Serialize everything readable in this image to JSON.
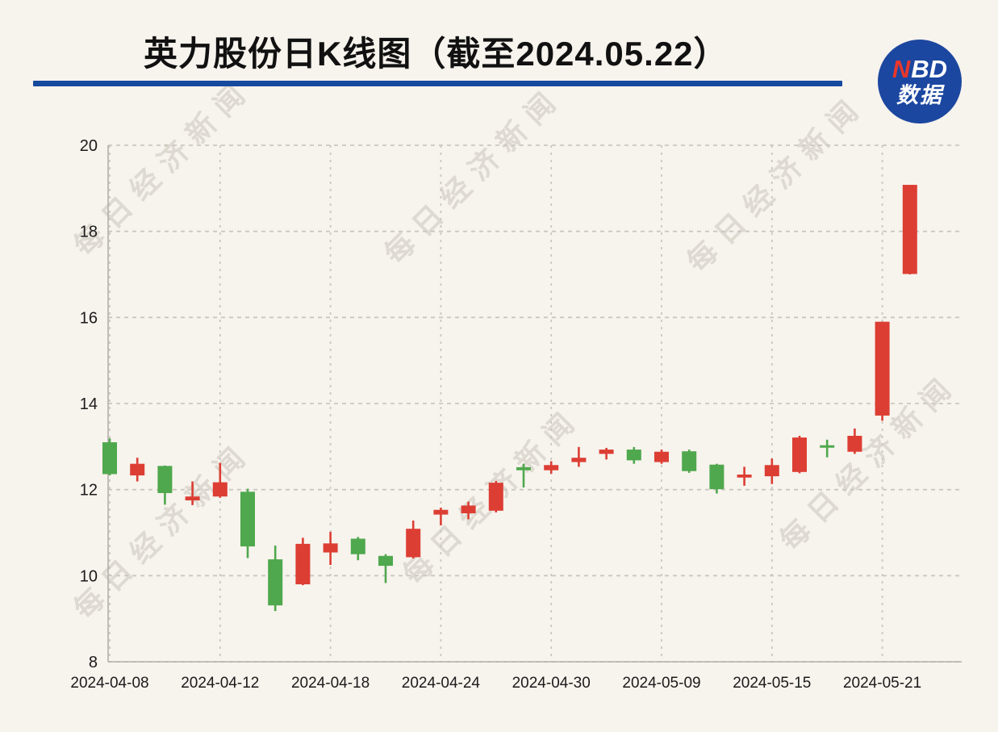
{
  "header": {
    "title": "英力股份日K线图（截至2024.05.22）",
    "logo": {
      "n": "N",
      "bd": "BD",
      "subtitle": "数据"
    }
  },
  "watermark": {
    "text": "每日经济新闻"
  },
  "colors": {
    "background": "#f7f3ed",
    "up": "#dc3e33",
    "down": "#4fa84d",
    "rule_blue": "#164a9e",
    "logo_blue": "#1c47a0",
    "logo_red": "#e8372c",
    "grid": "#cbc7c0",
    "axis": "#b3afa9",
    "label": "#1b1b1b"
  },
  "chart_data": {
    "type": "candlestick",
    "convention": "red = up (close > open), green = down (CN stock chart convention)",
    "ylim": [
      8,
      20
    ],
    "y_ticks": [
      8,
      10,
      12,
      14,
      16,
      18,
      20
    ],
    "x_tick_indices": [
      0,
      4,
      8,
      12,
      16,
      20,
      24,
      28
    ],
    "x_tick_labels": [
      "2024-04-08",
      "2024-04-12",
      "2024-04-18",
      "2024-04-24",
      "2024-04-30",
      "2024-05-09",
      "2024-05-15",
      "2024-05-21"
    ],
    "grid": true,
    "candles": [
      {
        "date": "2024-04-08",
        "o": 13.1,
        "h": 13.19,
        "l": 12.33,
        "c": 12.36
      },
      {
        "date": "2024-04-09",
        "o": 12.33,
        "h": 12.74,
        "l": 12.19,
        "c": 12.6
      },
      {
        "date": "2024-04-10",
        "o": 12.55,
        "h": 12.56,
        "l": 11.65,
        "c": 11.92
      },
      {
        "date": "2024-04-11",
        "o": 11.75,
        "h": 12.19,
        "l": 11.64,
        "c": 11.84
      },
      {
        "date": "2024-04-12",
        "o": 11.84,
        "h": 12.62,
        "l": 11.81,
        "c": 12.17
      },
      {
        "date": "2024-04-15",
        "o": 11.95,
        "h": 12.02,
        "l": 10.41,
        "c": 10.68
      },
      {
        "date": "2024-04-16",
        "o": 10.38,
        "h": 10.7,
        "l": 9.18,
        "c": 9.31
      },
      {
        "date": "2024-04-17",
        "o": 9.8,
        "h": 10.88,
        "l": 9.78,
        "c": 10.74
      },
      {
        "date": "2024-04-18",
        "o": 10.54,
        "h": 11.02,
        "l": 10.25,
        "c": 10.75
      },
      {
        "date": "2024-04-19",
        "o": 10.86,
        "h": 10.9,
        "l": 10.36,
        "c": 10.5
      },
      {
        "date": "2024-04-22",
        "o": 10.46,
        "h": 10.5,
        "l": 9.83,
        "c": 10.23
      },
      {
        "date": "2024-04-23",
        "o": 10.43,
        "h": 11.28,
        "l": 10.4,
        "c": 11.09
      },
      {
        "date": "2024-04-24",
        "o": 11.42,
        "h": 11.58,
        "l": 11.17,
        "c": 11.53
      },
      {
        "date": "2024-04-25",
        "o": 11.45,
        "h": 11.72,
        "l": 11.31,
        "c": 11.63
      },
      {
        "date": "2024-04-26",
        "o": 11.51,
        "h": 12.2,
        "l": 11.47,
        "c": 12.16
      },
      {
        "date": "2024-04-29",
        "o": 12.52,
        "h": 12.6,
        "l": 12.05,
        "c": 12.45
      },
      {
        "date": "2024-04-30",
        "o": 12.45,
        "h": 12.66,
        "l": 12.37,
        "c": 12.57
      },
      {
        "date": "2024-05-06",
        "o": 12.64,
        "h": 12.99,
        "l": 12.53,
        "c": 12.74
      },
      {
        "date": "2024-05-07",
        "o": 12.83,
        "h": 12.97,
        "l": 12.7,
        "c": 12.93
      },
      {
        "date": "2024-05-08",
        "o": 12.93,
        "h": 12.99,
        "l": 12.6,
        "c": 12.68
      },
      {
        "date": "2024-05-09",
        "o": 12.64,
        "h": 12.93,
        "l": 12.6,
        "c": 12.88
      },
      {
        "date": "2024-05-10",
        "o": 12.89,
        "h": 12.93,
        "l": 12.39,
        "c": 12.43
      },
      {
        "date": "2024-05-13",
        "o": 12.58,
        "h": 12.6,
        "l": 11.91,
        "c": 12.01
      },
      {
        "date": "2024-05-14",
        "o": 12.28,
        "h": 12.53,
        "l": 12.09,
        "c": 12.35
      },
      {
        "date": "2024-05-15",
        "o": 12.31,
        "h": 12.72,
        "l": 12.13,
        "c": 12.57
      },
      {
        "date": "2024-05-16",
        "o": 12.41,
        "h": 13.25,
        "l": 12.38,
        "c": 13.21
      },
      {
        "date": "2024-05-17",
        "o": 13.03,
        "h": 13.16,
        "l": 12.75,
        "c": 13.0
      },
      {
        "date": "2024-05-20",
        "o": 12.88,
        "h": 13.42,
        "l": 12.83,
        "c": 13.25
      },
      {
        "date": "2024-05-21",
        "o": 13.72,
        "h": 15.9,
        "l": 13.6,
        "c": 15.9
      },
      {
        "date": "2024-05-22",
        "o": 17.01,
        "h": 19.08,
        "l": 17.0,
        "c": 19.08
      }
    ]
  }
}
